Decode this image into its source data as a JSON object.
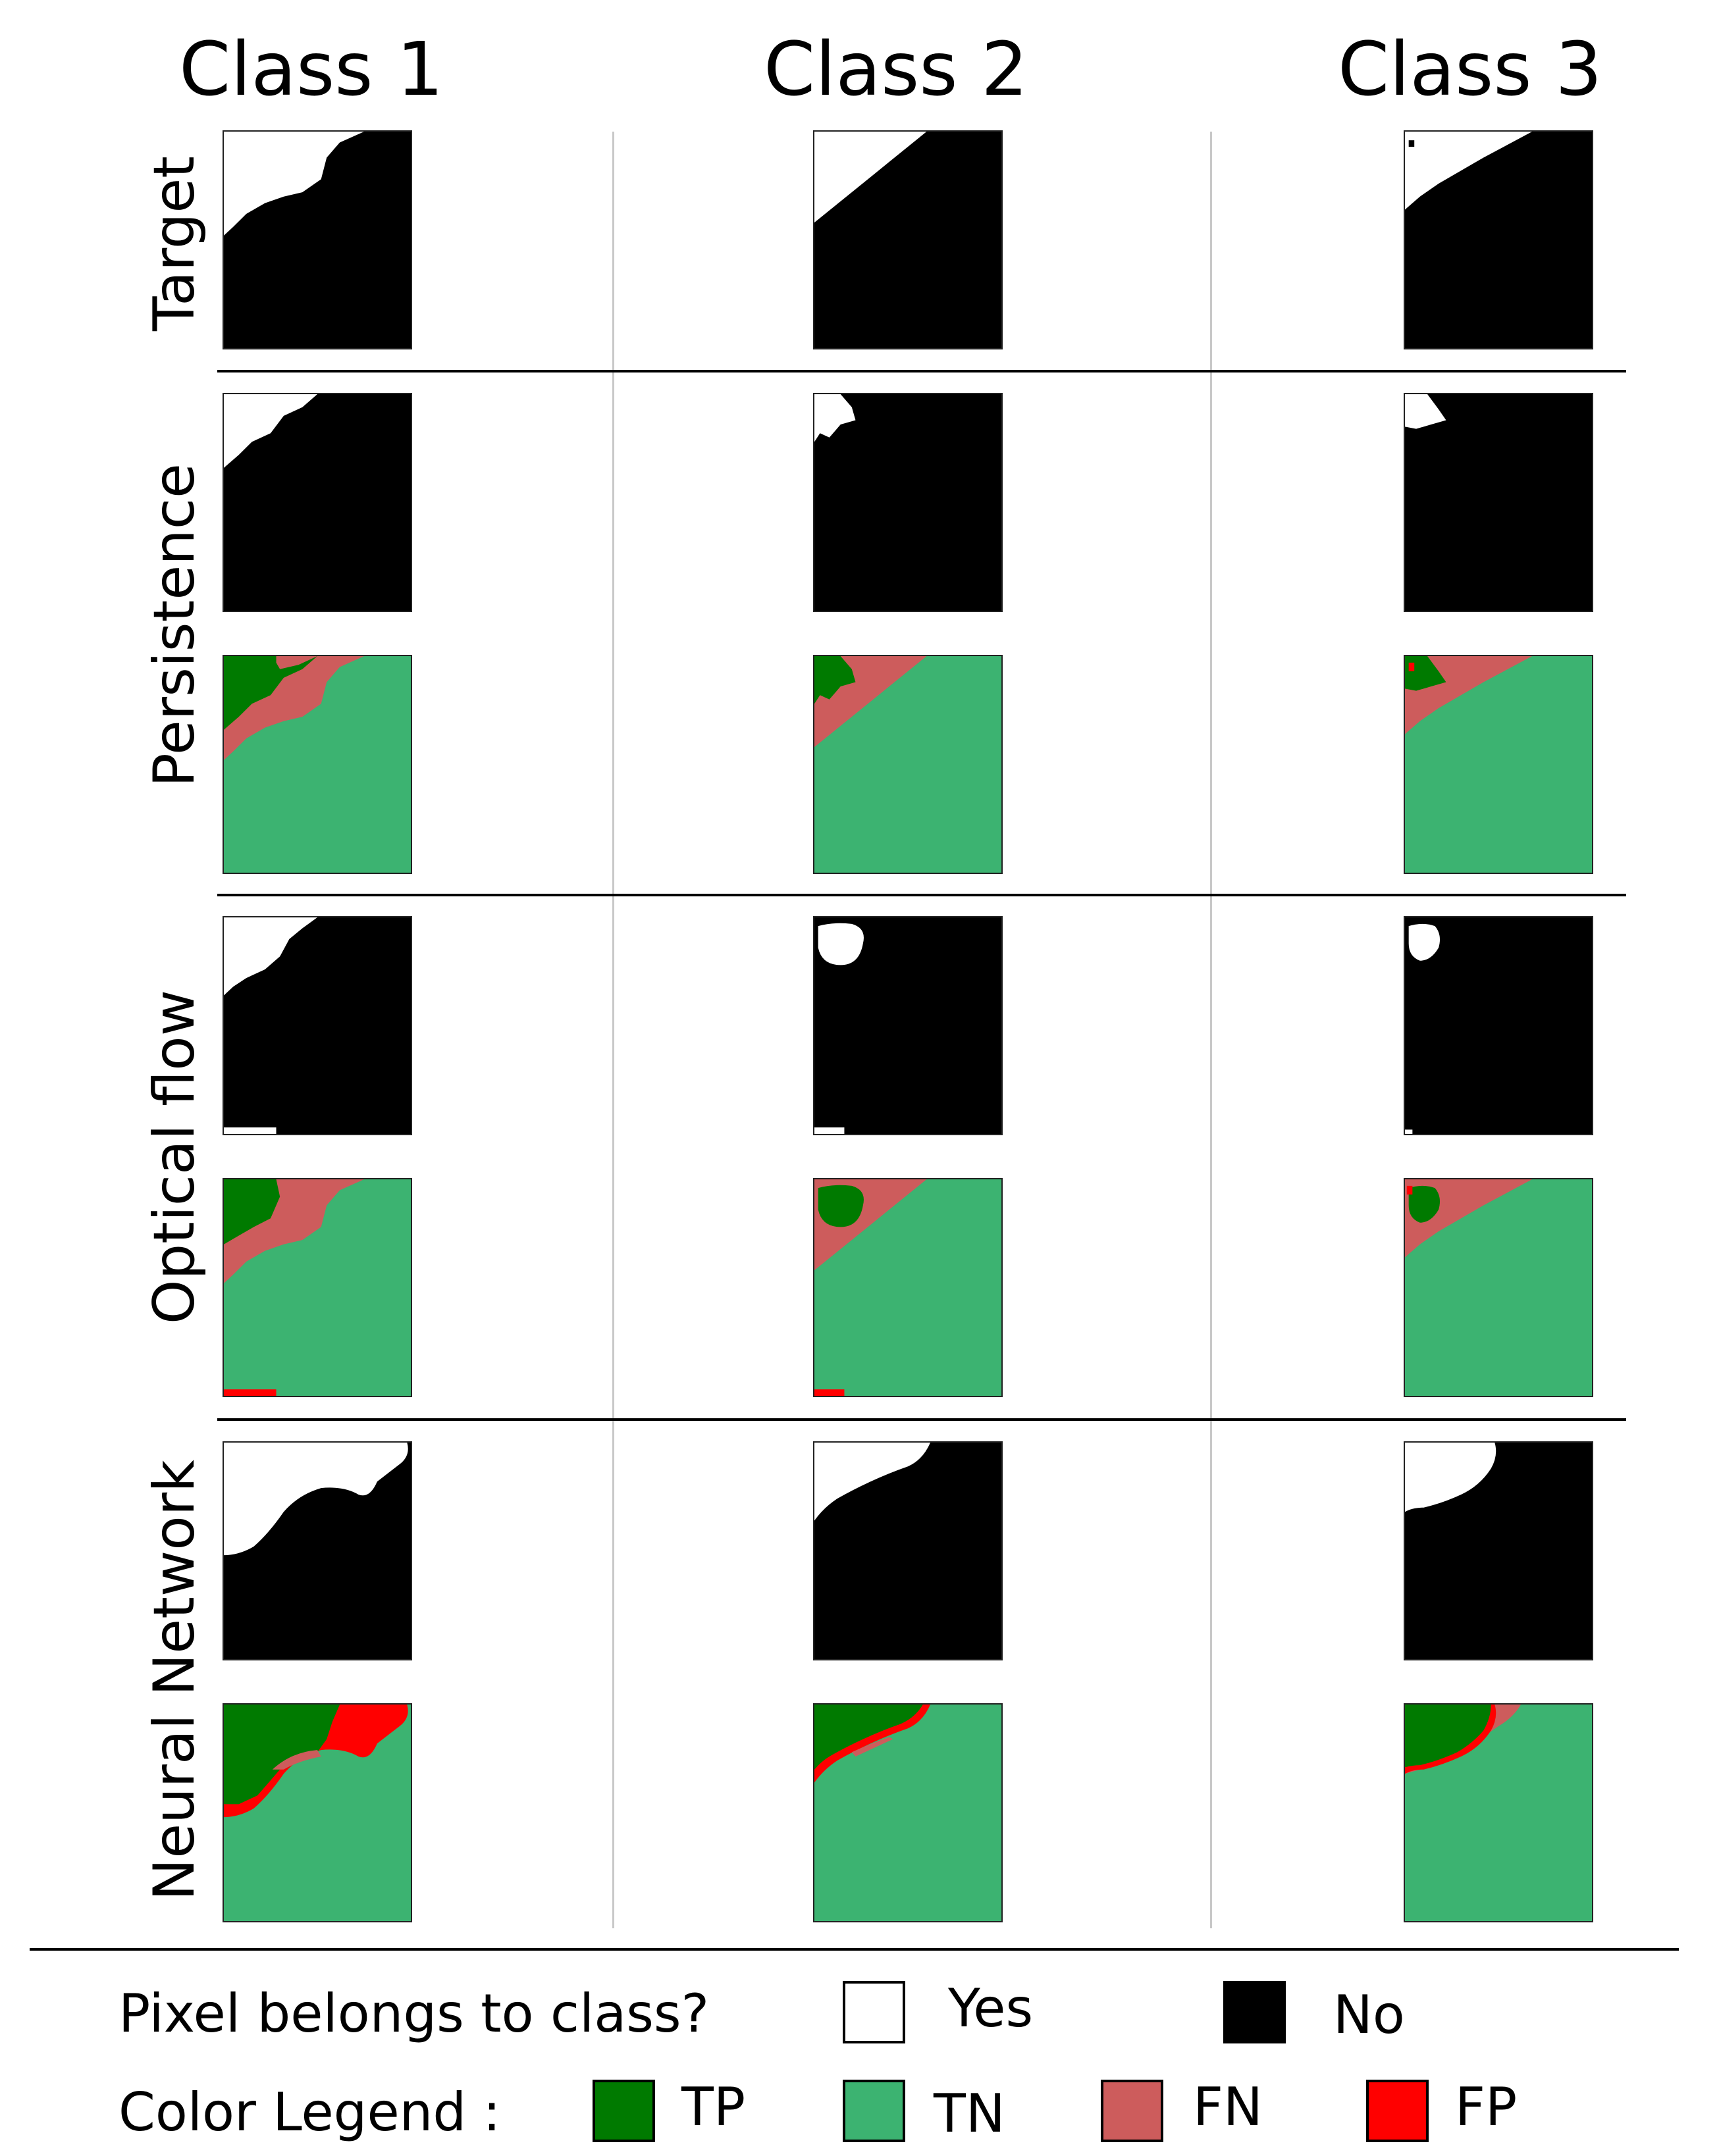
{
  "columns": [
    "Class 1",
    "Class 2",
    "Class 3"
  ],
  "rows": {
    "target": "Target",
    "persistence": "Persistence",
    "optical_flow": "Optical flow",
    "neural_network": "Neural Network"
  },
  "legend": {
    "pixel_question": "Pixel belongs to class?",
    "yes": "Yes",
    "no": "No",
    "color_legend": "Color Legend :",
    "tp": "TP",
    "tn": "TN",
    "fn": "FN",
    "fp": "FP"
  },
  "colors": {
    "yes": "#ffffff",
    "no": "#000000",
    "tp": "#007a00",
    "tn": "#3cb371",
    "fn": "#cd5c5c",
    "fp": "#ff0000"
  }
}
